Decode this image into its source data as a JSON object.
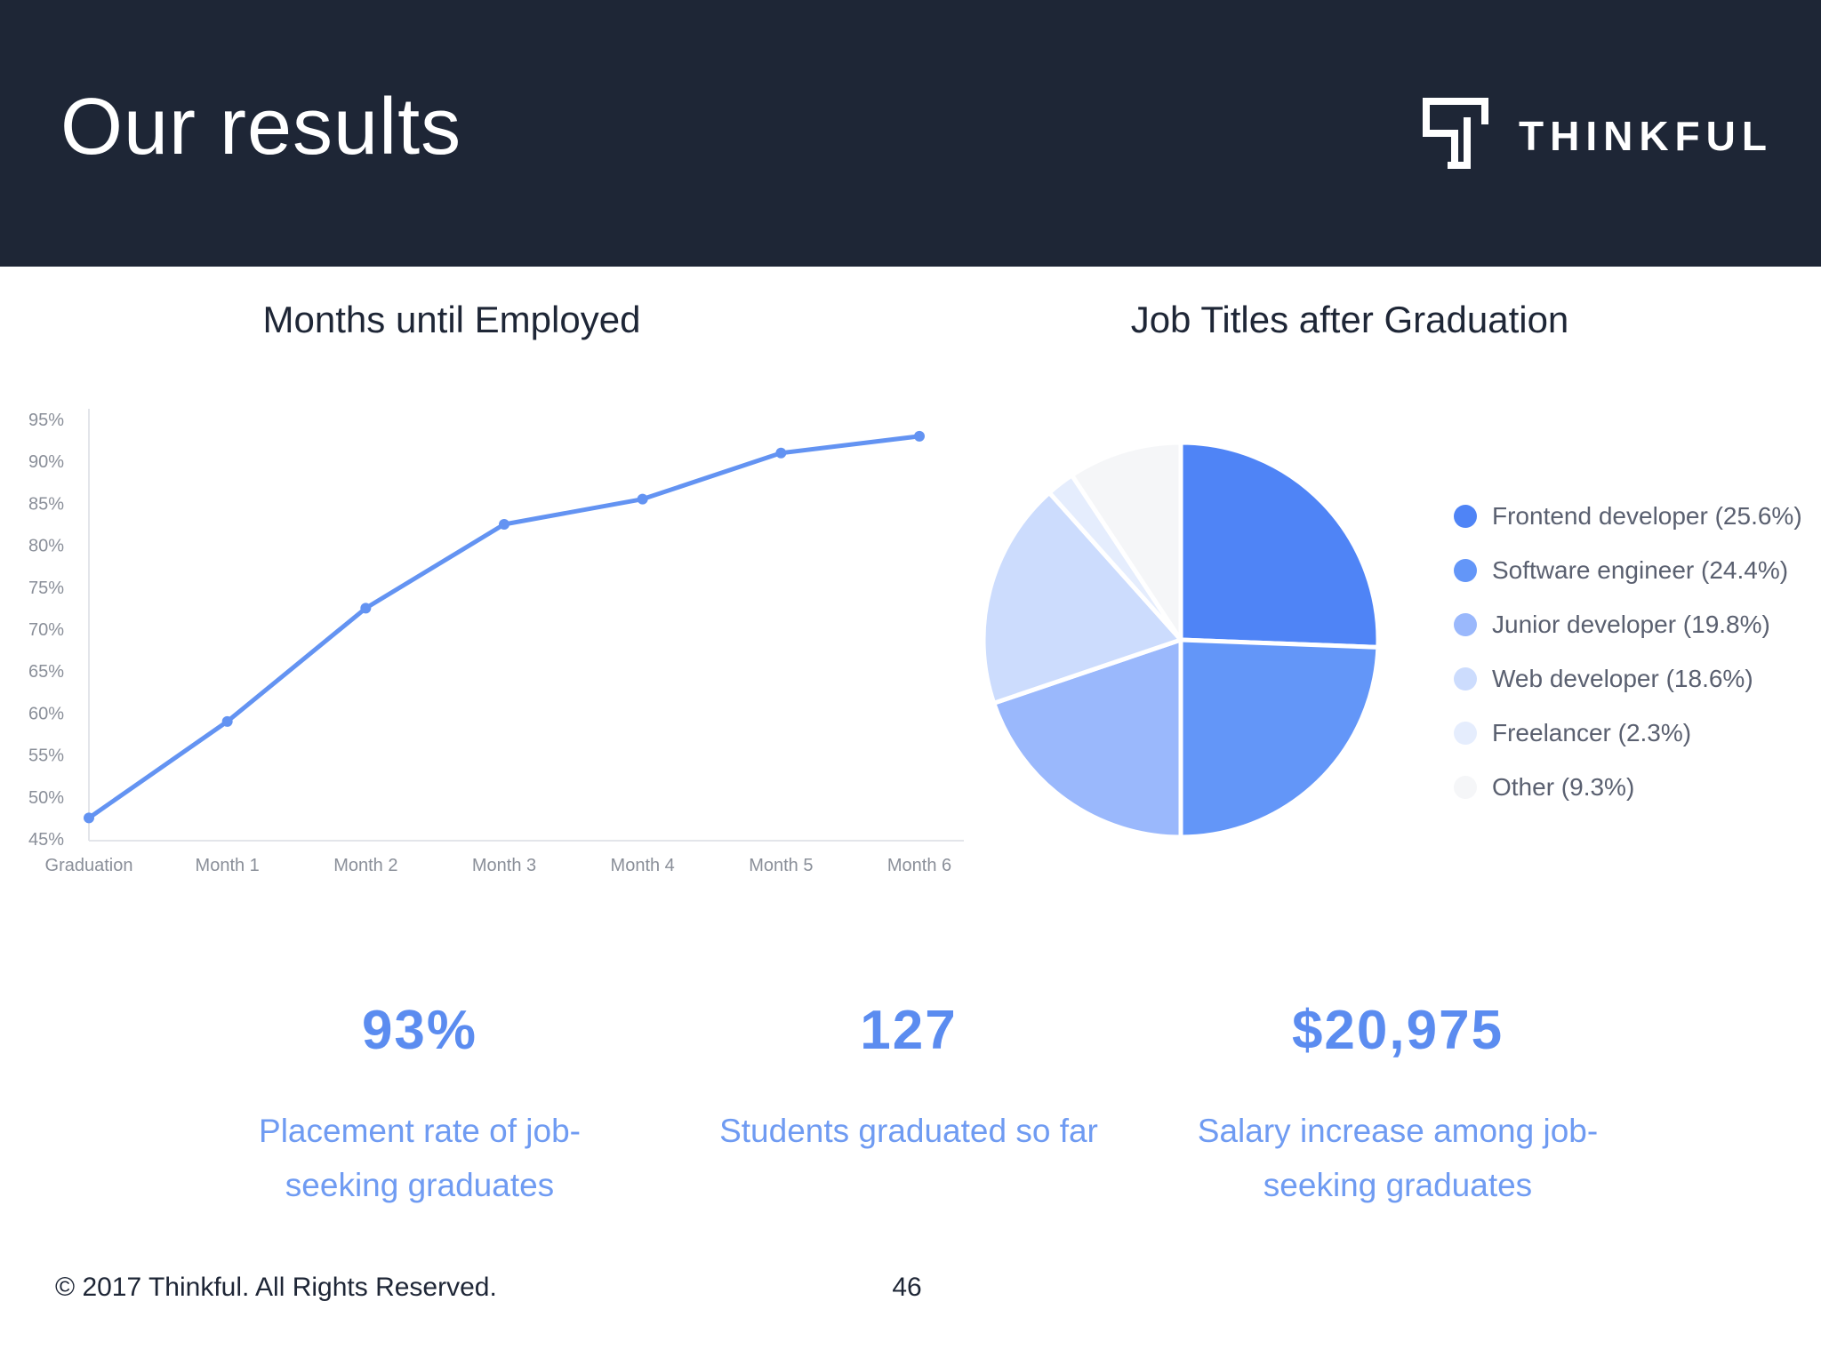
{
  "header": {
    "title": "Our results",
    "logo_text": "THINKFUL"
  },
  "colors": {
    "header_bg": "#1e2636",
    "accent": "#5b8cf0",
    "line": "#6393f2"
  },
  "chart_data": [
    {
      "type": "line",
      "title": "Months until Employed",
      "xlabel": "",
      "ylabel": "",
      "categories": [
        "Graduation",
        "Month 1",
        "Month 2",
        "Month 3",
        "Month 4",
        "Month 5",
        "Month 6"
      ],
      "series": [
        {
          "values": [
            47.5,
            59,
            72.5,
            82.5,
            85.5,
            91,
            93
          ]
        }
      ],
      "yticks": [
        "95%",
        "90%",
        "85%",
        "80%",
        "75%",
        "70%",
        "65%",
        "60%",
        "55%",
        "50%",
        "45%"
      ],
      "ylim": [
        45,
        95
      ],
      "grid": false,
      "legend": false
    },
    {
      "type": "pie",
      "title": "Job Titles after Graduation",
      "legend_position": "right",
      "slices": [
        {
          "label": "Frontend developer (25.6%)",
          "value": 25.6,
          "color": "#4f84f6"
        },
        {
          "label": "Software engineer (24.4%)",
          "value": 24.4,
          "color": "#6396f8"
        },
        {
          "label": "Junior developer (19.8%)",
          "value": 19.8,
          "color": "#9ab8fc"
        },
        {
          "label": "Web developer (18.6%)",
          "value": 18.6,
          "color": "#ccdcfd"
        },
        {
          "label": "Freelancer (2.3%)",
          "value": 2.3,
          "color": "#e5edfd"
        },
        {
          "label": "Other (9.3%)",
          "value": 9.3,
          "color": "#f5f6f8"
        }
      ]
    }
  ],
  "stats": [
    {
      "value": "93%",
      "description": "Placement rate of job-seeking graduates"
    },
    {
      "value": "127",
      "description": "Students graduated so far"
    },
    {
      "value": "$20,975",
      "description": "Salary increase among job-seeking graduates"
    }
  ],
  "footer": {
    "copyright": "© 2017 Thinkful. All Rights Reserved.",
    "page_number": "46"
  }
}
